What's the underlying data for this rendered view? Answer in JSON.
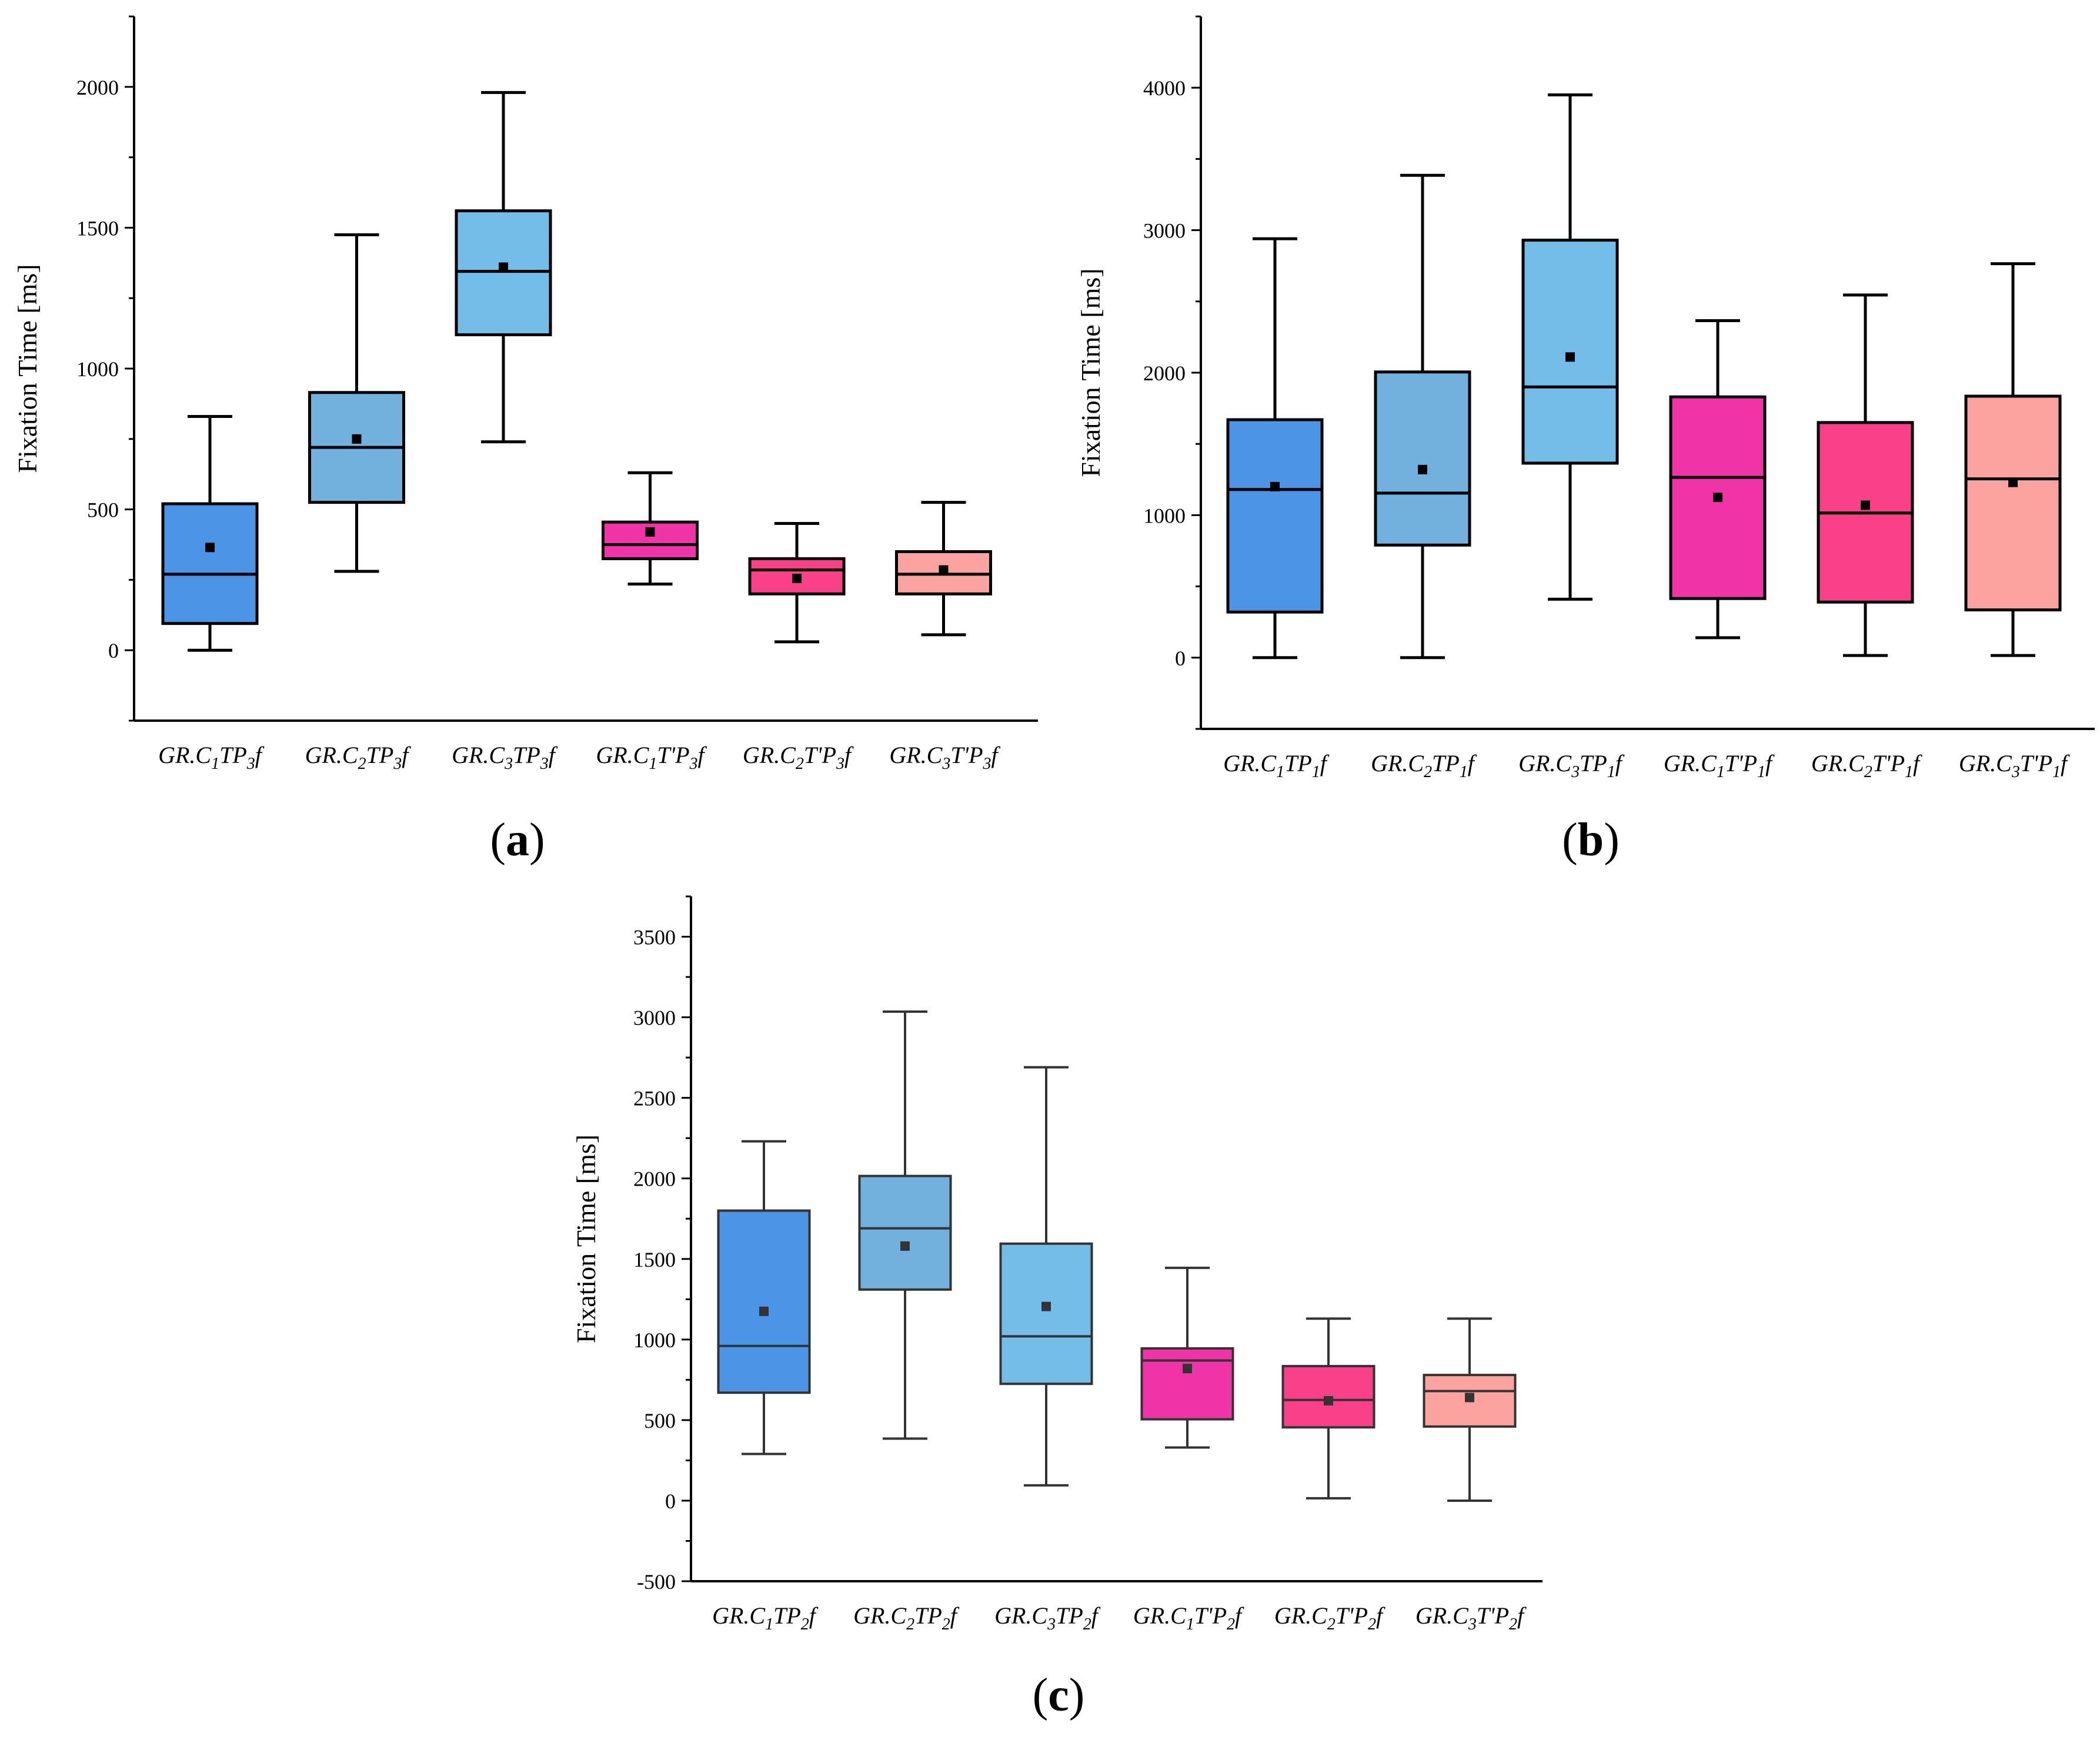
{
  "figure": {
    "panel_labels": [
      "a",
      "b",
      "c"
    ]
  },
  "chart_data": [
    {
      "panel": "a",
      "type": "box",
      "ylabel": "Fixation Time [ms]",
      "ylim": [
        -250,
        2250
      ],
      "yticks": [
        0,
        500,
        1000,
        1500,
        2000
      ],
      "category_labels": [
        {
          "pre": "GR.C",
          "s1": "1",
          "mid": "TP",
          "s2": "3",
          "post": "f"
        },
        {
          "pre": "GR.C",
          "s1": "2",
          "mid": "TP",
          "s2": "3",
          "post": "f"
        },
        {
          "pre": "GR.C",
          "s1": "3",
          "mid": "TP",
          "s2": "3",
          "post": "f"
        },
        {
          "pre": "GR.C",
          "s1": "1",
          "mid": "T'P",
          "s2": "3",
          "post": "f"
        },
        {
          "pre": "GR.C",
          "s1": "2",
          "mid": "T'P",
          "s2": "3",
          "post": "f"
        },
        {
          "pre": "GR.C",
          "s1": "3",
          "mid": "T'P",
          "s2": "3",
          "post": "f"
        }
      ],
      "boxes": [
        {
          "min": 0,
          "q1": 95,
          "median": 270,
          "q3": 520,
          "max": 830,
          "mean": 365,
          "color": "#4b94e6"
        },
        {
          "min": 280,
          "q1": 525,
          "median": 720,
          "q3": 915,
          "max": 1475,
          "mean": 750,
          "color": "#72b1dd"
        },
        {
          "min": 740,
          "q1": 1120,
          "median": 1345,
          "q3": 1560,
          "max": 1980,
          "mean": 1360,
          "color": "#74bde9"
        },
        {
          "min": 235,
          "q1": 325,
          "median": 375,
          "q3": 455,
          "max": 630,
          "mean": 420,
          "color": "#f033a6"
        },
        {
          "min": 30,
          "q1": 200,
          "median": 285,
          "q3": 325,
          "max": 450,
          "mean": 255,
          "color": "#f94089"
        },
        {
          "min": 55,
          "q1": 200,
          "median": 270,
          "q3": 350,
          "max": 525,
          "mean": 285,
          "color": "#fca39f"
        }
      ]
    },
    {
      "panel": "b",
      "type": "box",
      "ylabel": "Fixation Time [ms]",
      "ylim": [
        -500,
        4500
      ],
      "yticks": [
        0,
        1000,
        2000,
        3000,
        4000
      ],
      "category_labels": [
        {
          "pre": "GR.C",
          "s1": "1",
          "mid": "TP",
          "s2": "1",
          "post": "f"
        },
        {
          "pre": "GR.C",
          "s1": "2",
          "mid": "TP",
          "s2": "1",
          "post": "f"
        },
        {
          "pre": "GR.C",
          "s1": "3",
          "mid": "TP",
          "s2": "1",
          "post": "f"
        },
        {
          "pre": "GR.C",
          "s1": "1",
          "mid": "T'P",
          "s2": "1",
          "post": "f"
        },
        {
          "pre": "GR.C",
          "s1": "2",
          "mid": "T'P",
          "s2": "1",
          "post": "f"
        },
        {
          "pre": "GR.C",
          "s1": "3",
          "mid": "T'P",
          "s2": "1",
          "post": "f"
        }
      ],
      "boxes": [
        {
          "min": 0,
          "q1": 320,
          "median": 1180,
          "q3": 1670,
          "max": 2940,
          "mean": 1200,
          "color": "#4b94e6"
        },
        {
          "min": 0,
          "q1": 790,
          "median": 1155,
          "q3": 2005,
          "max": 3385,
          "mean": 1320,
          "color": "#72b1dd"
        },
        {
          "min": 410,
          "q1": 1365,
          "median": 1900,
          "q3": 2930,
          "max": 3950,
          "mean": 2110,
          "color": "#74bde9"
        },
        {
          "min": 140,
          "q1": 415,
          "median": 1265,
          "q3": 1830,
          "max": 2365,
          "mean": 1125,
          "color": "#f033a6"
        },
        {
          "min": 15,
          "q1": 390,
          "median": 1015,
          "q3": 1650,
          "max": 2545,
          "mean": 1070,
          "color": "#f94089"
        },
        {
          "min": 15,
          "q1": 335,
          "median": 1255,
          "q3": 1835,
          "max": 2765,
          "mean": 1230,
          "color": "#fca39f"
        }
      ]
    },
    {
      "panel": "c",
      "type": "box",
      "ylabel": "Fixation Time [ms]",
      "ylim": [
        -500,
        3750
      ],
      "yticks": [
        -500,
        0,
        500,
        1000,
        1500,
        2000,
        2500,
        3000,
        3500
      ],
      "category_labels": [
        {
          "pre": "GR.C",
          "s1": "1",
          "mid": "TP",
          "s2": "2",
          "post": "f"
        },
        {
          "pre": "GR.C",
          "s1": "2",
          "mid": "TP",
          "s2": "2",
          "post": "f"
        },
        {
          "pre": "GR.C",
          "s1": "3",
          "mid": "TP",
          "s2": "2",
          "post": "f"
        },
        {
          "pre": "GR.C",
          "s1": "1",
          "mid": "T'P",
          "s2": "2",
          "post": "f"
        },
        {
          "pre": "GR.C",
          "s1": "2",
          "mid": "T'P",
          "s2": "2",
          "post": "f"
        },
        {
          "pre": "GR.C",
          "s1": "3",
          "mid": "T'P",
          "s2": "2",
          "post": "f"
        }
      ],
      "boxes": [
        {
          "min": 290,
          "q1": 670,
          "median": 960,
          "q3": 1800,
          "max": 2230,
          "mean": 1175,
          "color": "#4b94e6"
        },
        {
          "min": 385,
          "q1": 1310,
          "median": 1690,
          "q3": 2015,
          "max": 3035,
          "mean": 1580,
          "color": "#72b1dd"
        },
        {
          "min": 95,
          "q1": 725,
          "median": 1020,
          "q3": 1595,
          "max": 2690,
          "mean": 1205,
          "color": "#74bde9"
        },
        {
          "min": 330,
          "q1": 505,
          "median": 870,
          "q3": 945,
          "max": 1445,
          "mean": 820,
          "color": "#f033a6"
        },
        {
          "min": 15,
          "q1": 455,
          "median": 625,
          "q3": 835,
          "max": 1130,
          "mean": 620,
          "color": "#f94089"
        },
        {
          "min": 0,
          "q1": 460,
          "median": 680,
          "q3": 780,
          "max": 1130,
          "mean": 640,
          "color": "#fca39f"
        }
      ]
    }
  ]
}
